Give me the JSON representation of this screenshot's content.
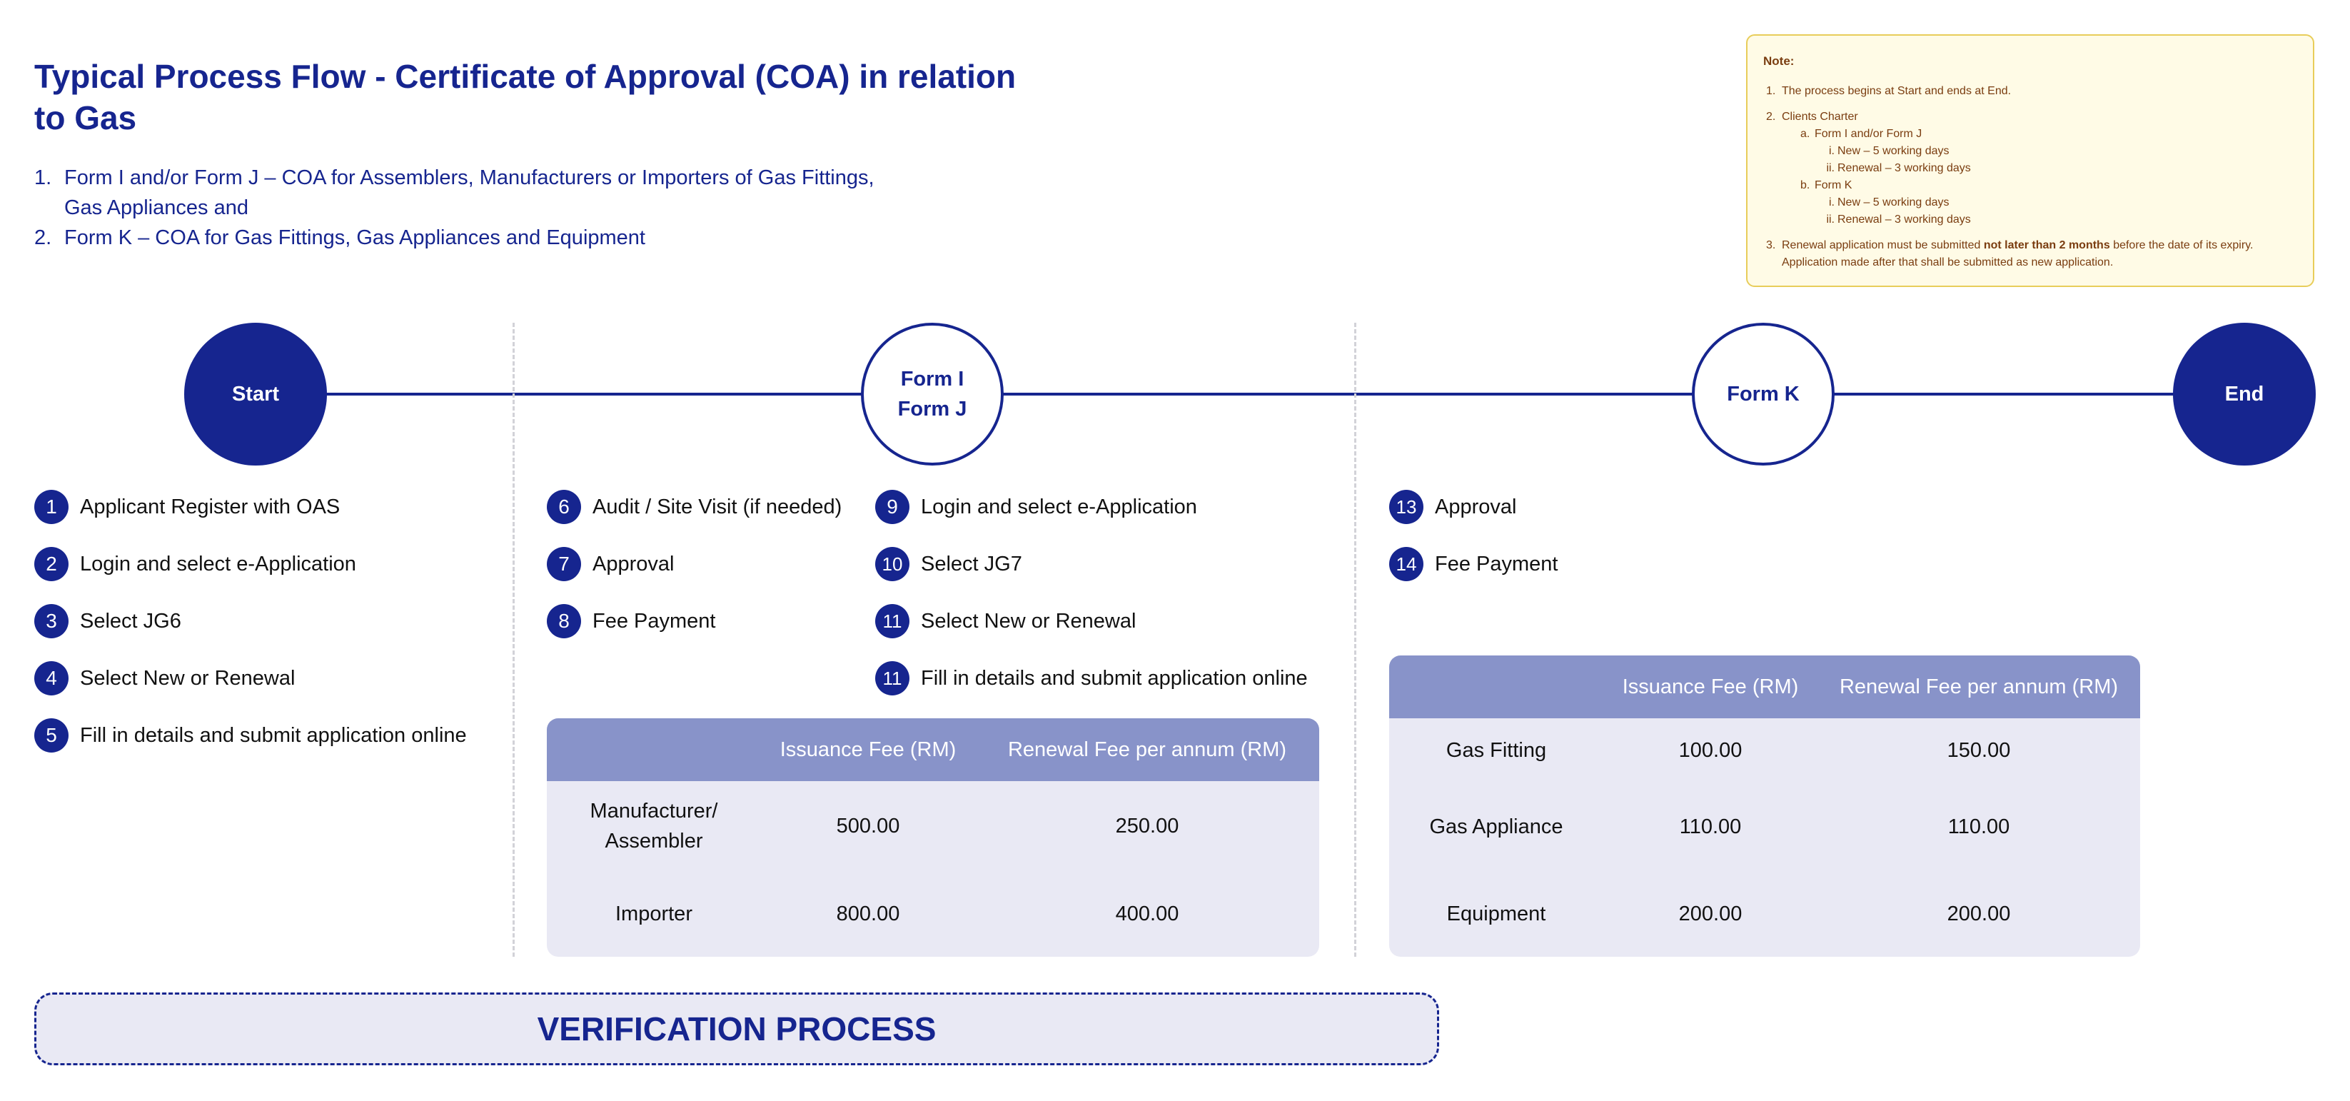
{
  "title": "Typical Process Flow - Certificate of Approval (COA) in relation to Gas",
  "intro": [
    {
      "num": "1.",
      "text": "Form I and/or Form J – COA for Assemblers, Manufacturers or Importers of Gas Fittings, Gas Appliances and"
    },
    {
      "num": "2.",
      "text": "Form K – COA for Gas Fittings, Gas Appliances and Equipment"
    }
  ],
  "note": {
    "title": "Note:",
    "item1": {
      "num": "1.",
      "text": "The process begins at Start and ends at End."
    },
    "item2": {
      "num": "2.",
      "text": "Clients Charter",
      "a": {
        "num": "a.",
        "text": "Form I and/or Form J",
        "i": {
          "num": "i.",
          "text": "New – 5 working days"
        },
        "ii": {
          "num": "ii.",
          "text": "Renewal – 3 working days"
        }
      },
      "b": {
        "num": "b.",
        "text": "Form K",
        "i": {
          "num": "i.",
          "text": "New – 5 working days"
        },
        "ii": {
          "num": "ii.",
          "text": "Renewal – 3 working days"
        }
      }
    },
    "item3": {
      "num": "3.",
      "pre": "Renewal application must be submitted",
      "bold": "not later than 2 months",
      "post": "before the date of its expiry.",
      "line2": "Application made after that shall be submitted as new application."
    }
  },
  "nodes": {
    "start": "Start",
    "form_ij": {
      "line1": "Form I",
      "line2": "Form J"
    },
    "form_k": "Form K",
    "end": "End"
  },
  "steps_col1": [
    {
      "num": "1",
      "label": "Applicant Register with OAS"
    },
    {
      "num": "2",
      "label": "Login and select e-Application"
    },
    {
      "num": "3",
      "label": "Select JG6"
    },
    {
      "num": "4",
      "label": "Select New or Renewal"
    },
    {
      "num": "5",
      "label": "Fill in details and submit application online"
    }
  ],
  "steps_col2": [
    {
      "num": "6",
      "label": "Audit / Site Visit (if needed)"
    },
    {
      "num": "7",
      "label": "Approval"
    },
    {
      "num": "8",
      "label": "Fee Payment"
    }
  ],
  "steps_col3": [
    {
      "num": "9",
      "label": "Login and select e-Application"
    },
    {
      "num": "10",
      "label": "Select JG7"
    },
    {
      "num": "11",
      "label": "Select New or Renewal"
    },
    {
      "num": "11",
      "label": "Fill in details and submit application online"
    }
  ],
  "steps_col4": [
    {
      "num": "13",
      "label": "Approval"
    },
    {
      "num": "14",
      "label": "Fee Payment"
    }
  ],
  "table_ij": {
    "headers": [
      "",
      "Issuance Fee (RM)",
      "Renewal Fee per annum (RM)"
    ],
    "rows": [
      {
        "label": "Manufacturer/ Assembler",
        "issuance": "500.00",
        "renewal": "250.00"
      },
      {
        "label": "Importer",
        "issuance": "800.00",
        "renewal": "400.00"
      }
    ]
  },
  "table_k": {
    "headers": [
      "",
      "Issuance Fee (RM)",
      "Renewal Fee per annum (RM)"
    ],
    "rows": [
      {
        "label": "Gas Fitting",
        "issuance": "100.00",
        "renewal": "150.00"
      },
      {
        "label": "Gas Appliance",
        "issuance": "110.00",
        "renewal": "110.00"
      },
      {
        "label": "Equipment",
        "issuance": "200.00",
        "renewal": "200.00"
      }
    ]
  },
  "verification": "VERIFICATION PROCESS",
  "colors": {
    "primary": "#16258f",
    "table_header": "#8893c9",
    "table_body": "#e9e9f4",
    "note_bg": "#fffbe6",
    "note_border": "#e8cd5a"
  }
}
